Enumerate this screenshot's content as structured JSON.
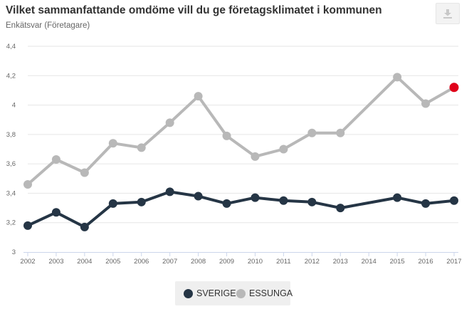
{
  "header": {
    "title": "Vilket sammanfattande omdöme vill du ge företagsklimatet i kommunen",
    "subtitle": "Enkätsvar (Företagare)",
    "export_icon": "download-icon"
  },
  "colors": {
    "sverige": "#253545",
    "essunga": "#b8b8b8",
    "highlight": "#e0001a",
    "grid": "#e6e6e6"
  },
  "chart_data": {
    "type": "line",
    "title": "Vilket sammanfattande omdöme vill du ge företagsklimatet i kommunen",
    "subtitle": "Enkätsvar (Företagare)",
    "xlabel": "",
    "ylabel": "",
    "categories": [
      "2002",
      "2003",
      "2004",
      "2005",
      "2006",
      "2007",
      "2008",
      "2009",
      "2010",
      "2011",
      "2012",
      "2013",
      "2014",
      "2015",
      "2016",
      "2017"
    ],
    "ylim": [
      3,
      4.4
    ],
    "yticks": [
      3,
      3.2,
      3.4,
      3.6,
      3.8,
      4,
      4.2,
      4.4
    ],
    "ytick_labels": [
      "3",
      "3,2",
      "3,4",
      "3,6",
      "3,8",
      "4",
      "4,2",
      "4,4"
    ],
    "grid": true,
    "legend": "bottom-center",
    "series": [
      {
        "name": "SVERIGE",
        "color": "#253545",
        "values": [
          3.18,
          3.27,
          3.17,
          3.33,
          3.34,
          3.41,
          3.38,
          3.33,
          3.37,
          3.35,
          3.34,
          3.3,
          null,
          3.37,
          3.33,
          3.35
        ]
      },
      {
        "name": "ESSUNGA",
        "color": "#b8b8b8",
        "values": [
          3.46,
          3.63,
          3.54,
          3.74,
          3.71,
          3.88,
          4.06,
          3.79,
          3.65,
          3.7,
          3.81,
          3.81,
          null,
          4.19,
          4.01,
          4.12
        ]
      }
    ]
  }
}
